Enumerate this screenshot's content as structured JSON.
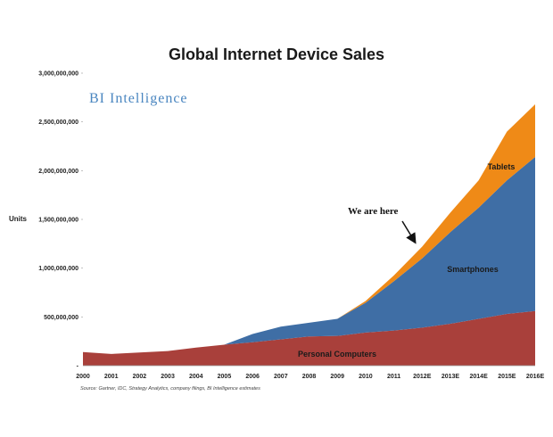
{
  "chart_data": {
    "type": "area",
    "stacked": true,
    "title": "Global Internet Device Sales",
    "ylabel": "Units",
    "ylim": [
      0,
      3000000000
    ],
    "yticks": [
      0,
      500000000,
      1000000000,
      1500000000,
      2000000000,
      2500000000,
      3000000000
    ],
    "ytick_labels": [
      "-",
      "500,000,000",
      "1,000,000,000",
      "1,500,000,000",
      "2,000,000,000",
      "2,500,000,000",
      "3,000,000,000"
    ],
    "categories": [
      "2000",
      "2001",
      "2002",
      "2003",
      "2004",
      "2005",
      "2006",
      "2007",
      "2008",
      "2009",
      "2010",
      "2011",
      "2012E",
      "2013E",
      "2014E",
      "2015E",
      "2016E"
    ],
    "series": [
      {
        "name": "Personal Computers",
        "color": "#a9403b",
        "values": [
          140000000,
          120000000,
          135000000,
          150000000,
          185000000,
          215000000,
          240000000,
          270000000,
          300000000,
          305000000,
          340000000,
          360000000,
          390000000,
          430000000,
          480000000,
          530000000,
          560000000
        ]
      },
      {
        "name": "Smartphones",
        "color": "#3f6ea5",
        "values": [
          0,
          0,
          0,
          0,
          0,
          0,
          85000000,
          130000000,
          140000000,
          175000000,
          305000000,
          505000000,
          710000000,
          940000000,
          1140000000,
          1370000000,
          1580000000
        ]
      },
      {
        "name": "Tablets",
        "color": "#ef8a17",
        "values": [
          0,
          0,
          0,
          0,
          0,
          0,
          0,
          0,
          0,
          0,
          18000000,
          60000000,
          120000000,
          200000000,
          280000000,
          500000000,
          540000000
        ]
      }
    ],
    "annotation": "We are here",
    "brand": "BI Intelligence",
    "source": "Source: Gartner, IDC, Strategy Analytics, company filings, BI Intelligence estimates"
  }
}
